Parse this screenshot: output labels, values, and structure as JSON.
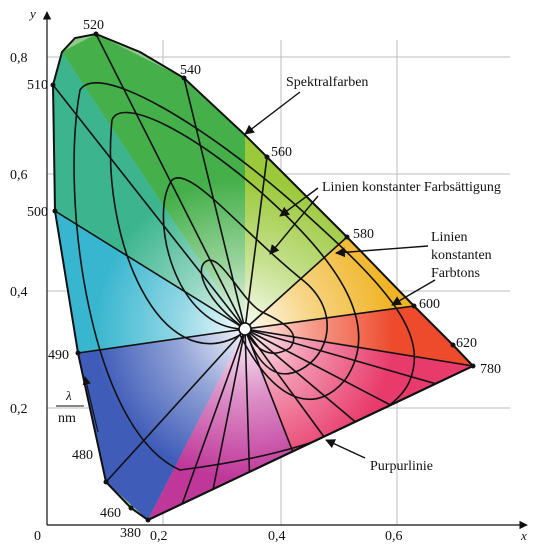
{
  "axes": {
    "x_label": "x",
    "y_label": "y",
    "origin_label": "0",
    "x_ticks": [
      "0,2",
      "0,4",
      "0,6"
    ],
    "y_ticks": [
      "0,8",
      "0,6",
      "0,4",
      "0,2"
    ]
  },
  "wavelength_labels": [
    "520",
    "540",
    "560",
    "580",
    "600",
    "620",
    "780",
    "510",
    "500",
    "490",
    "480",
    "460",
    "380"
  ],
  "unit_label": {
    "numerator": "λ",
    "denominator": "nm"
  },
  "annotations": {
    "spectral": "Spektralfarben",
    "saturation": "Linien konstanter Farbsättigung",
    "hue_line1": "Linien",
    "hue_line2": "konstanten",
    "hue_line3": "Farbtons",
    "purple": "Purpurlinie"
  },
  "colors": {
    "green": "#3fae3a",
    "yellow": "#f2d21f",
    "red": "#e8262b",
    "magenta": "#e0338a",
    "blue": "#3b3fa8",
    "cyan": "#37b3cf",
    "white_point": "#ffffff"
  }
}
